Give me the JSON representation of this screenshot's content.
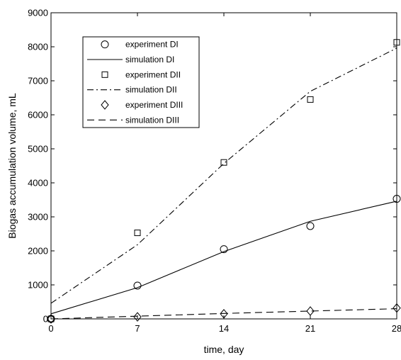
{
  "chart_data": {
    "type": "line",
    "xlabel": "time, day",
    "ylabel": "Biogas accumulation volume, mL",
    "xlim": [
      0,
      28
    ],
    "ylim": [
      0,
      9000
    ],
    "xticks": [
      0,
      7,
      14,
      21,
      28
    ],
    "yticks": [
      0,
      1000,
      2000,
      3000,
      4000,
      5000,
      6000,
      7000,
      8000,
      9000
    ],
    "grid": false,
    "legend_position": "top-left",
    "series": [
      {
        "name": "experiment DI",
        "kind": "marker",
        "marker": "circle",
        "x": [
          0,
          7,
          14,
          21,
          28
        ],
        "y": [
          0,
          980,
          2050,
          2730,
          3530
        ]
      },
      {
        "name": "simulation DI",
        "kind": "line",
        "dash": "solid",
        "x": [
          0,
          7,
          14,
          21,
          28
        ],
        "y": [
          150,
          920,
          1980,
          2870,
          3460
        ]
      },
      {
        "name": "experiment DII",
        "kind": "marker",
        "marker": "square",
        "x": [
          0,
          7,
          14,
          21,
          28
        ],
        "y": [
          0,
          2530,
          4600,
          6450,
          8130
        ]
      },
      {
        "name": "simulation DII",
        "kind": "line",
        "dash": "dashdot",
        "x": [
          0,
          7,
          14,
          21,
          28
        ],
        "y": [
          460,
          2180,
          4570,
          6690,
          7960
        ]
      },
      {
        "name": "experiment DIII",
        "kind": "marker",
        "marker": "diamond",
        "x": [
          0,
          7,
          14,
          21,
          28
        ],
        "y": [
          0,
          60,
          150,
          230,
          320
        ]
      },
      {
        "name": "simulation DIII",
        "kind": "line",
        "dash": "dashed",
        "x": [
          0,
          7,
          14,
          21,
          28
        ],
        "y": [
          0,
          80,
          160,
          230,
          300
        ]
      }
    ]
  }
}
